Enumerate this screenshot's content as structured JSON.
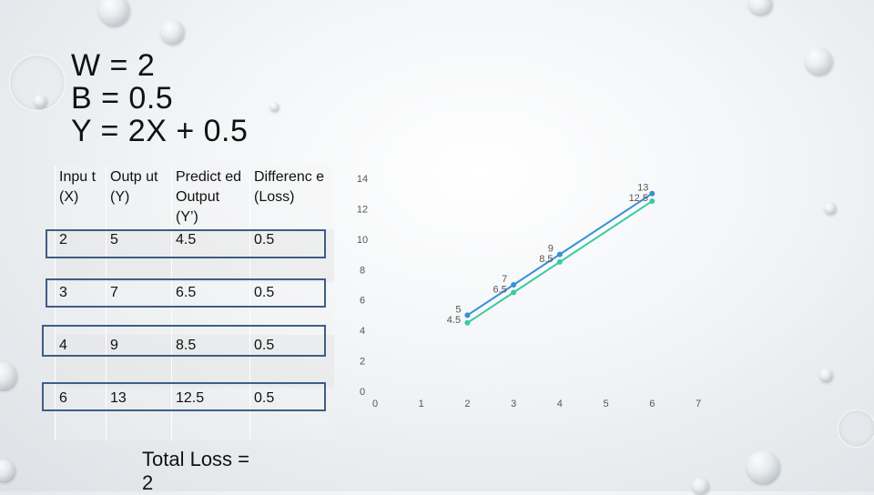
{
  "slide": {
    "title_lines": [
      "W = 2",
      "B = 0.5",
      "Y = 2X + 0.5"
    ],
    "total_loss_label": "Total Loss =",
    "total_loss_value": "2"
  },
  "table": {
    "headers": [
      "Inpu t (X)",
      "Outp ut (Y)",
      "Predict ed Output (Y’)",
      "Differenc e (Loss)"
    ],
    "rows": [
      [
        "2",
        "5",
        "4.5",
        "0.5"
      ],
      [
        "3",
        "7",
        "6.5",
        "0.5"
      ],
      [
        "4",
        "9",
        "8.5",
        "0.5"
      ],
      [
        "6",
        "13",
        "12.5",
        "0.5"
      ]
    ]
  },
  "chart_data": {
    "type": "line",
    "x": [
      2,
      3,
      4,
      6
    ],
    "series": [
      {
        "values": [
          5,
          7,
          9,
          13
        ],
        "color": "#3a8fd6"
      },
      {
        "values": [
          4.5,
          6.5,
          8.5,
          12.5
        ],
        "color": "#3cc9a3"
      }
    ],
    "xlim": [
      0,
      7
    ],
    "ylim": [
      0,
      14
    ],
    "x_ticks": [
      "0",
      "1",
      "2",
      "3",
      "4",
      "5",
      "6",
      "7"
    ],
    "y_ticks": [
      "0",
      "2",
      "4",
      "6",
      "8",
      "10",
      "12",
      "14"
    ],
    "data_labels": true,
    "grid": false
  },
  "colors": {
    "highlight_border": "#3f5d86"
  }
}
